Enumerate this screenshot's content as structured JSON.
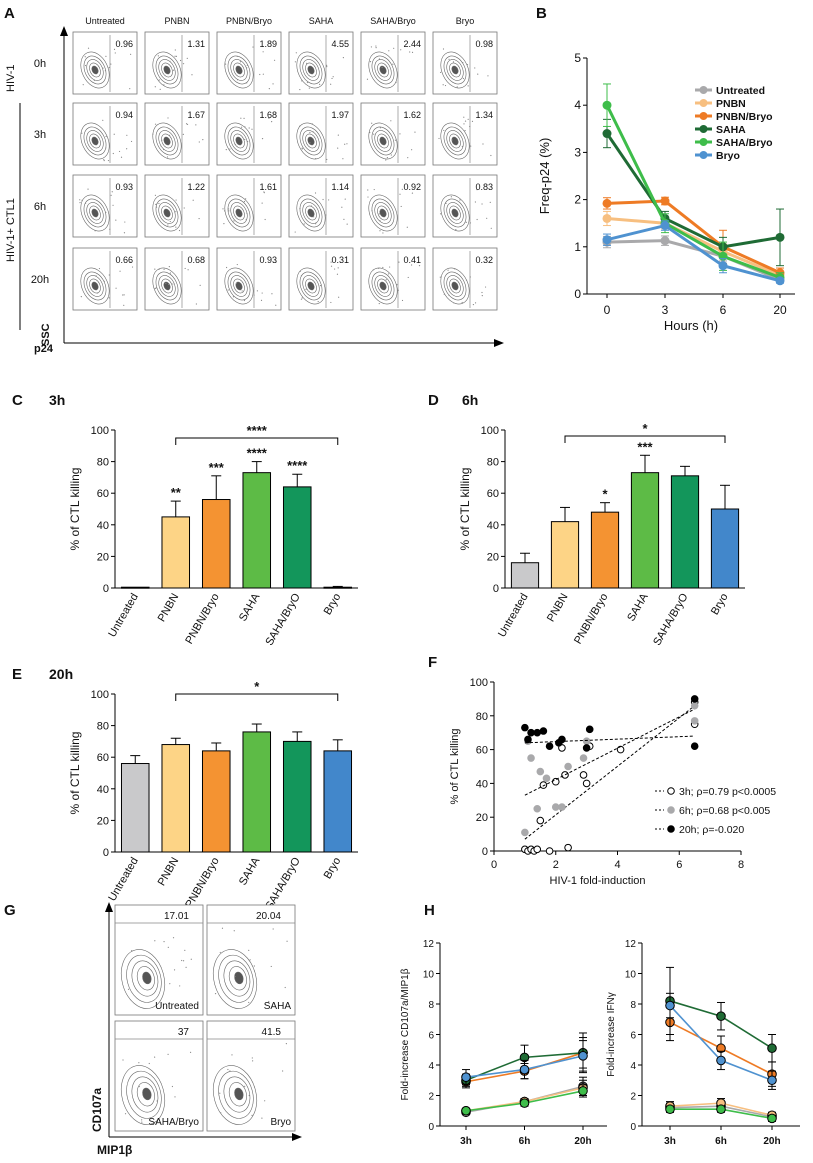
{
  "panel_labels": {
    "A": "A",
    "B": "B",
    "C": "C",
    "D": "D",
    "E": "E",
    "F": "F",
    "G": "G",
    "H": "H"
  },
  "colors": {
    "Untreated": "#a9a9ab",
    "PNBN": "#f7bf80",
    "PNBN/Bryo": "#ee7b25",
    "SAHA": "#1f6b35",
    "SAHA/Bryo": "#3ebd4a",
    "Bryo": "#4f92d0",
    "bar_Untreated": "#c9c9cb",
    "bar_PNBN": "#fdd486",
    "bar_PNBN/Bryo": "#f49332",
    "bar_SAHA": "#5dbb46",
    "bar_SAHA/BryO": "#13965b",
    "bar_Bryo": "#4287cb"
  },
  "flow": {
    "columns": [
      "Untreated",
      "PNBN",
      "PNBN/Bryo",
      "SAHA",
      "SAHA/Bryo",
      "Bryo"
    ],
    "rows": [
      "0h",
      "3h",
      "6h",
      "20h"
    ],
    "values": [
      [
        "0.96",
        "1.31",
        "1.89",
        "4.55",
        "2.44",
        "0.98"
      ],
      [
        "0.94",
        "1.67",
        "1.68",
        "1.97",
        "1.62",
        "1.34"
      ],
      [
        "0.93",
        "1.22",
        "1.61",
        "1.14",
        "0.92",
        "0.83"
      ],
      [
        "0.66",
        "0.68",
        "0.93",
        "0.31",
        "0.41",
        "0.32"
      ]
    ],
    "group_hiv": "HIV-1",
    "group_hiv_ctl": "HIV-1+ CTL1",
    "x_axis": "p24",
    "y_axis": "SSC"
  },
  "chart_data": [
    {
      "id": "B",
      "type": "line",
      "x": [
        0,
        3,
        6,
        20
      ],
      "xticks": [
        "0",
        "3",
        "6",
        "20"
      ],
      "xlabel": "Hours (h)",
      "ylabel": "Freq-p24 (%)",
      "ylim": [
        0,
        5
      ],
      "yticks": [
        "0",
        "1",
        "2",
        "3",
        "4",
        "5"
      ],
      "series": [
        {
          "name": "Untreated",
          "values": [
            1.1,
            1.13,
            0.8,
            0.3
          ],
          "err": [
            0.12,
            0.1,
            0.1,
            0.05
          ]
        },
        {
          "name": "PNBN",
          "values": [
            1.6,
            1.5,
            0.9,
            0.4
          ],
          "err": [
            0.15,
            0.12,
            0.15,
            0.05
          ]
        },
        {
          "name": "PNBN/Bryo",
          "values": [
            1.92,
            1.97,
            1.0,
            0.45
          ],
          "err": [
            0.12,
            0.08,
            0.35,
            0.1
          ]
        },
        {
          "name": "SAHA",
          "values": [
            3.4,
            1.6,
            1.0,
            1.2
          ],
          "err": [
            0.3,
            0.15,
            0.2,
            0.6
          ]
        },
        {
          "name": "SAHA/Bryo",
          "values": [
            4.0,
            1.5,
            0.8,
            0.35
          ],
          "err": [
            0.45,
            0.2,
            0.3,
            0.1
          ]
        },
        {
          "name": "Bryo",
          "values": [
            1.15,
            1.45,
            0.6,
            0.28
          ],
          "err": [
            0.12,
            0.1,
            0.15,
            0.05
          ]
        }
      ]
    },
    {
      "id": "C",
      "type": "bar",
      "title": "3h",
      "ylabel": "% of CTL killing",
      "ylim": [
        0,
        100
      ],
      "yticks": [
        "0",
        "20",
        "40",
        "60",
        "80",
        "100"
      ],
      "categories": [
        "Untreated",
        "PNBN",
        "PNBN/Bryo",
        "SAHA",
        "SAHA/BryO",
        "Bryo"
      ],
      "values": [
        0.5,
        45,
        56,
        73,
        64,
        0.5
      ],
      "err": [
        0,
        10,
        15,
        7,
        8,
        0.5
      ],
      "stars": [
        "",
        "**",
        "***",
        "****",
        "****",
        ""
      ],
      "bracket_star": "****"
    },
    {
      "id": "D",
      "type": "bar",
      "title": "6h",
      "ylabel": "% of CTL killing",
      "ylim": [
        0,
        100
      ],
      "yticks": [
        "0",
        "20",
        "40",
        "60",
        "80",
        "100"
      ],
      "categories": [
        "Untreated",
        "PNBN",
        "PNBN/Bryo",
        "SAHA",
        "SAHA/BryO",
        "Bryo"
      ],
      "values": [
        16,
        42,
        48,
        73,
        71,
        50
      ],
      "err": [
        6,
        9,
        6,
        11,
        6,
        15
      ],
      "stars": [
        "",
        "",
        "*",
        "***",
        "",
        ""
      ],
      "bracket_star": "*"
    },
    {
      "id": "E",
      "type": "bar",
      "title": "20h",
      "ylabel": "% of CTL killing",
      "ylim": [
        0,
        100
      ],
      "yticks": [
        "0",
        "20",
        "40",
        "60",
        "80",
        "100"
      ],
      "categories": [
        "Untreated",
        "PNBN",
        "PNBN/Bryo",
        "SAHA",
        "SAHA/BryO",
        "Bryo"
      ],
      "values": [
        56,
        68,
        64,
        76,
        70,
        64
      ],
      "err": [
        5,
        4,
        5,
        5,
        6,
        7
      ],
      "stars": [
        "",
        "",
        "",
        "",
        "",
        ""
      ],
      "bracket_star": "*"
    },
    {
      "id": "F",
      "type": "scatter",
      "xlabel": "HIV-1  fold-induction",
      "ylabel": "% of CTL killing",
      "xlim": [
        0,
        8
      ],
      "ylim": [
        0,
        100
      ],
      "xticks": [
        "0",
        "2",
        "4",
        "6",
        "8"
      ],
      "yticks": [
        "0",
        "20",
        "40",
        "60",
        "80",
        "100"
      ],
      "series": [
        {
          "name": "3h; ρ=0.79 p<0.0005",
          "fill": "#ffffff",
          "points": [
            [
              1.0,
              1
            ],
            [
              1.1,
              0
            ],
            [
              1.2,
              1
            ],
            [
              1.3,
              0
            ],
            [
              1.4,
              1
            ],
            [
              1.5,
              18
            ],
            [
              1.6,
              39
            ],
            [
              1.8,
              0
            ],
            [
              2.0,
              41
            ],
            [
              2.3,
              45
            ],
            [
              2.4,
              2
            ],
            [
              2.2,
              61
            ],
            [
              2.9,
              45
            ],
            [
              3.0,
              40
            ],
            [
              3.1,
              62
            ],
            [
              4.1,
              60
            ],
            [
              6.5,
              75
            ],
            [
              6.5,
              88
            ]
          ],
          "fit": [
            [
              1.0,
              7
            ],
            [
              6.5,
              86
            ]
          ]
        },
        {
          "name": "6h; ρ=0.68 p<0.005",
          "fill": "#a9a9ab",
          "points": [
            [
              1.0,
              11
            ],
            [
              1.1,
              65
            ],
            [
              1.2,
              55
            ],
            [
              1.4,
              25
            ],
            [
              1.5,
              47
            ],
            [
              1.7,
              43
            ],
            [
              2.0,
              26
            ],
            [
              2.2,
              26
            ],
            [
              2.4,
              50
            ],
            [
              2.9,
              55
            ],
            [
              3.0,
              65
            ],
            [
              6.5,
              77
            ],
            [
              6.5,
              86
            ]
          ],
          "fit": [
            [
              1.0,
              33
            ],
            [
              6.5,
              84
            ]
          ]
        },
        {
          "name": "20h; ρ=-0.020",
          "fill": "#000000",
          "points": [
            [
              1.0,
              73
            ],
            [
              1.2,
              70
            ],
            [
              1.4,
              70
            ],
            [
              1.6,
              71
            ],
            [
              1.8,
              62
            ],
            [
              2.1,
              64
            ],
            [
              2.2,
              66
            ],
            [
              3.0,
              61
            ],
            [
              3.1,
              72
            ],
            [
              6.5,
              90
            ],
            [
              6.5,
              62
            ],
            [
              1.1,
              66
            ]
          ],
          "fit": [
            [
              1.0,
              64
            ],
            [
              6.5,
              68
            ]
          ]
        }
      ]
    },
    {
      "id": "H1",
      "type": "line",
      "ylabel": "Fold-increase CD107a/MIP1β",
      "x": [
        "3h",
        "6h",
        "20h"
      ],
      "ylim": [
        0,
        12
      ],
      "yticks": [
        "0",
        "2",
        "4",
        "6",
        "8",
        "10",
        "12"
      ],
      "series": [
        {
          "name": "Untreated",
          "values": [
            0.9,
            1.6,
            2.6
          ],
          "err": [
            0.1,
            0.2,
            0.6
          ]
        },
        {
          "name": "PNBN",
          "values": [
            1.0,
            1.6,
            2.5
          ],
          "err": [
            0.1,
            0.2,
            0.5
          ]
        },
        {
          "name": "PNBN/Bryo",
          "values": [
            2.9,
            3.6,
            4.8
          ],
          "err": [
            0.4,
            0.5,
            1.0
          ]
        },
        {
          "name": "SAHA",
          "values": [
            3.0,
            4.5,
            4.8
          ],
          "err": [
            0.4,
            0.8,
            1.3
          ]
        },
        {
          "name": "SAHA/Bryo",
          "values": [
            1.0,
            1.5,
            2.3
          ],
          "err": [
            0.1,
            0.2,
            0.4
          ]
        },
        {
          "name": "Bryo",
          "values": [
            3.2,
            3.7,
            4.6
          ],
          "err": [
            0.5,
            0.6,
            1.0
          ]
        }
      ]
    },
    {
      "id": "H2",
      "type": "line",
      "ylabel": "Fold-increase IFNγ",
      "x": [
        "3h",
        "6h",
        "20h"
      ],
      "ylim": [
        0,
        12
      ],
      "yticks": [
        "0",
        "2",
        "4",
        "6",
        "8",
        "10",
        "12"
      ],
      "series": [
        {
          "name": "Untreated",
          "values": [
            1.2,
            1.3,
            0.6
          ],
          "err": [
            0.3,
            0.3,
            0.2
          ]
        },
        {
          "name": "PNBN",
          "values": [
            1.3,
            1.5,
            0.7
          ],
          "err": [
            0.3,
            0.3,
            0.2
          ]
        },
        {
          "name": "PNBN/Bryo",
          "values": [
            6.8,
            5.1,
            3.4
          ],
          "err": [
            1.2,
            0.8,
            0.8
          ]
        },
        {
          "name": "SAHA",
          "values": [
            8.2,
            7.2,
            5.1
          ],
          "err": [
            2.2,
            0.9,
            0.9
          ]
        },
        {
          "name": "SAHA/Bryo",
          "values": [
            1.1,
            1.1,
            0.5
          ],
          "err": [
            0.2,
            0.2,
            0.2
          ]
        },
        {
          "name": "Bryo",
          "values": [
            7.9,
            4.3,
            3.0
          ],
          "err": [
            0.8,
            0.6,
            0.6
          ]
        }
      ]
    }
  ],
  "panel_g": {
    "values": [
      "17.01",
      "20.04",
      "37",
      "41.5"
    ],
    "labels": [
      "Untreated",
      "SAHA",
      "SAHA/Bryo",
      "Bryo"
    ],
    "x_axis": "MIP1β",
    "y_axis": "CD107a"
  },
  "panel_h_xlabels": [
    "3h",
    "6h",
    "20h"
  ]
}
